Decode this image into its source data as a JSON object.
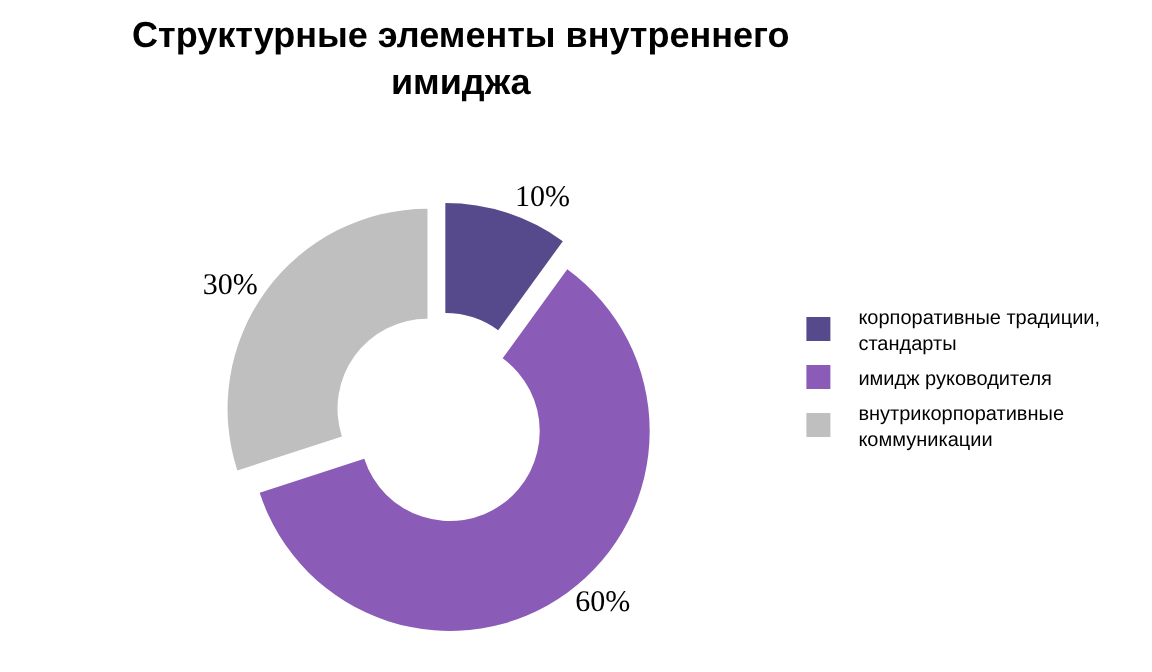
{
  "chart_data": {
    "type": "donut",
    "title": "Структурные элементы внутреннего имиджа",
    "categories": [
      "корпоративные традиции, стандарты",
      "имидж руководителя",
      "внутрикорпоративные коммуникации"
    ],
    "values": [
      10,
      60,
      30
    ],
    "colors": [
      "#574a8c",
      "#8a5cb8",
      "#bfbfbf"
    ],
    "value_labels": [
      "10%",
      "60%",
      "30%"
    ],
    "legend": "right"
  }
}
